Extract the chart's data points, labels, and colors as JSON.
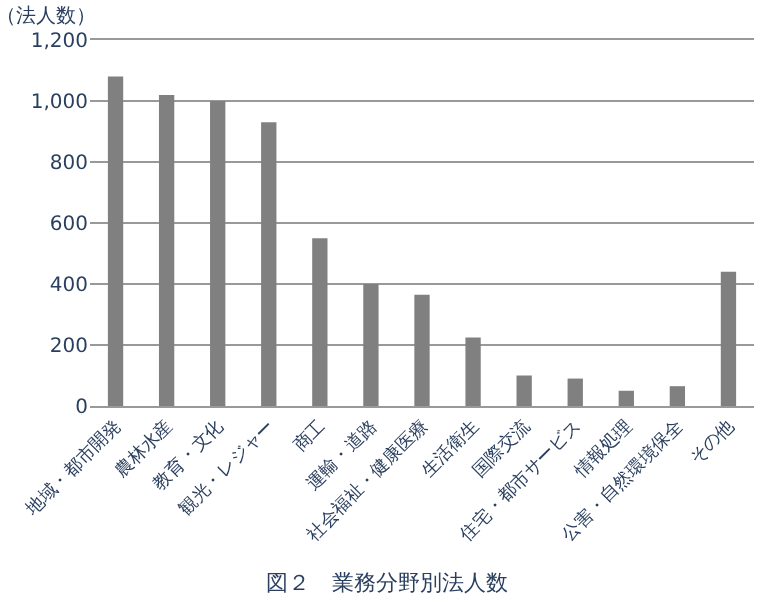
{
  "chart_data": {
    "type": "bar",
    "title": "図２　業務分野別法人数",
    "ylabel": "（法人数）",
    "categories": [
      "地域・都市開発",
      "農林水産",
      "教育・文化",
      "観光・レジャー",
      "商工",
      "運輸・道路",
      "社会福祉・健康医療",
      "生活衛生",
      "国際交流",
      "住宅・都市サービス",
      "情報処理",
      "公害・自然環境保全",
      "その他"
    ],
    "values": [
      1080,
      1020,
      1000,
      930,
      550,
      400,
      365,
      225,
      100,
      90,
      50,
      65,
      440
    ],
    "color": "#808080",
    "ylim": [
      0,
      1200
    ],
    "yticks": [
      0,
      200,
      400,
      600,
      800,
      {
        "value": 1000,
        "label": "1,000"
      },
      {
        "value": 1200,
        "label": "1,200"
      }
    ],
    "grid": "y"
  }
}
